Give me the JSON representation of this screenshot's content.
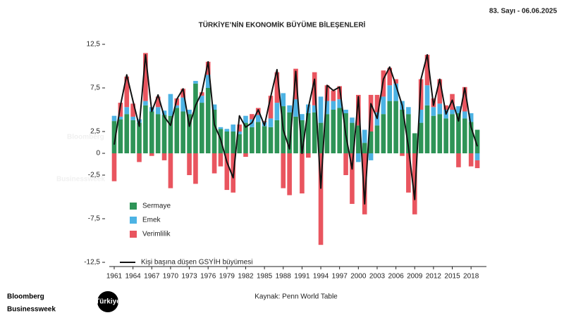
{
  "header": {
    "issue": "83. Sayı - 06.06.2025"
  },
  "brand": [
    "Bloomberg",
    "Businessweek"
  ],
  "brand_badge": "Türkiye",
  "chart_data": {
    "type": "bar",
    "stacked": true,
    "title": "TÜRKİYE’NİN EKONOMİK BÜYÜME BİLEŞENLERİ",
    "source": "Kaynak: Penn World Table",
    "categories": [
      "1961",
      null,
      null,
      "1964",
      null,
      null,
      "1967",
      null,
      null,
      "1970",
      null,
      null,
      "1973",
      null,
      null,
      "1976",
      null,
      null,
      "1979",
      null,
      null,
      "1982",
      null,
      null,
      "1985",
      null,
      null,
      "1988",
      null,
      null,
      "1991",
      null,
      null,
      "1994",
      null,
      null,
      "1997",
      null,
      null,
      "2000",
      null,
      null,
      "2003",
      null,
      null,
      "2006",
      null,
      null,
      "2009",
      null,
      null,
      "2012",
      null,
      null,
      "2015",
      null,
      null,
      "2018",
      null
    ],
    "ylim": [
      -12.5,
      12.5
    ],
    "yticks": [
      {
        "value": -12.5,
        "label": "-12,5"
      },
      {
        "value": -7.5,
        "label": "-7,5"
      },
      {
        "value": -2.5,
        "label": "-2,5"
      },
      0,
      {
        "value": 2.5,
        "label": "2,5"
      },
      {
        "value": 7.5,
        "label": "7,5"
      },
      {
        "value": 12.5,
        "label": "12,5"
      }
    ],
    "legend": "lower left",
    "series": [
      {
        "name": "Sermaye",
        "type": "bar",
        "color": "#2e9457",
        "values": [
          3.7,
          3.9,
          4.5,
          3.8,
          3.5,
          5.5,
          4.8,
          4.5,
          4.4,
          4.3,
          5.2,
          4.8,
          4.5,
          8.0,
          5.8,
          7.5,
          5.0,
          2.8,
          2.5,
          2.5,
          2.2,
          3.5,
          3.0,
          3.6,
          3.1,
          3.0,
          3.8,
          5.4,
          4.7,
          4.2,
          3.8,
          4.6,
          4.7,
          3.5,
          4.5,
          5.0,
          5.2,
          4.6,
          3.5,
          3.2,
          1.2,
          2.5,
          3.2,
          4.5,
          6.0,
          6.0,
          5.0,
          4.5,
          2.3,
          3.5,
          5.5,
          4.3,
          4.5,
          4.0,
          4.5,
          4.6,
          4.0,
          3.6,
          2.7
        ]
      },
      {
        "name": "Emek",
        "type": "bar",
        "color": "#4db3e4",
        "values": [
          0.6,
          0.3,
          0.8,
          0.4,
          0.4,
          0.5,
          0.5,
          0.8,
          0.5,
          2.5,
          0.3,
          1.6,
          0.5,
          0.3,
          0.8,
          1.5,
          0.6,
          0.2,
          0.3,
          0.8,
          0.3,
          0.8,
          0.9,
          0.8,
          0.5,
          1.0,
          2.0,
          1.5,
          0.8,
          2.0,
          0.7,
          1.0,
          0.8,
          3.0,
          1.5,
          1.0,
          1.0,
          0.4,
          0.6,
          -1.0,
          1.5,
          -0.8,
          1.5,
          2.0,
          1.8,
          2.0,
          1.0,
          0.8,
          0,
          1.5,
          2.3,
          1.0,
          1.2,
          1.0,
          0.5,
          0.8,
          0.8,
          1.0,
          -0.8
        ]
      },
      {
        "name": "Verimlilik",
        "type": "bar",
        "color": "#e9555f",
        "values": [
          -3.2,
          1.6,
          3.5,
          1.5,
          -1.0,
          5.5,
          -0.3,
          1.2,
          -0.8,
          -4.0,
          0.8,
          1.0,
          -2.5,
          -3.5,
          0.4,
          1.5,
          -2.3,
          -1.5,
          -4.2,
          -4.5,
          0.8,
          -0.4,
          0.6,
          0.8,
          0.1,
          2.6,
          3.5,
          -4.0,
          -4.8,
          3.5,
          -4.6,
          -0.5,
          3.8,
          -10.5,
          1.8,
          1.2,
          1.5,
          -2.5,
          -5.8,
          3.5,
          -7.0,
          4.2,
          2.0,
          3.0,
          2.0,
          0.5,
          -0.3,
          -4.5,
          -7.0,
          3.5,
          3.5,
          1.0,
          2.8,
          0.5,
          1.8,
          -1.6,
          2.8,
          -1.5,
          -0.9
        ]
      },
      {
        "name": "Kişi başına düşen GSYİH büyümesi",
        "type": "line",
        "color": "#111111",
        "values": [
          1.0,
          5.5,
          9.0,
          6.0,
          3.1,
          11.3,
          4.8,
          6.7,
          4.2,
          3.2,
          6.2,
          7.4,
          3.1,
          5.5,
          7.0,
          10.5,
          3.3,
          1.6,
          -1.0,
          -2.8,
          4.3,
          3.0,
          3.5,
          5.0,
          3.2,
          6.5,
          9.6,
          2.7,
          0.5,
          9.4,
          0,
          5.2,
          8.5,
          -4.0,
          7.8,
          7.2,
          7.6,
          2.1,
          -1.8,
          6.5,
          -5.8,
          5.7,
          4.0,
          8.5,
          9.9,
          7.8,
          5.5,
          0.7,
          -5.3,
          8.5,
          11.3,
          5.5,
          8.5,
          4.5,
          6.1,
          3.7,
          7.5,
          3.0,
          0.8
        ]
      }
    ]
  }
}
